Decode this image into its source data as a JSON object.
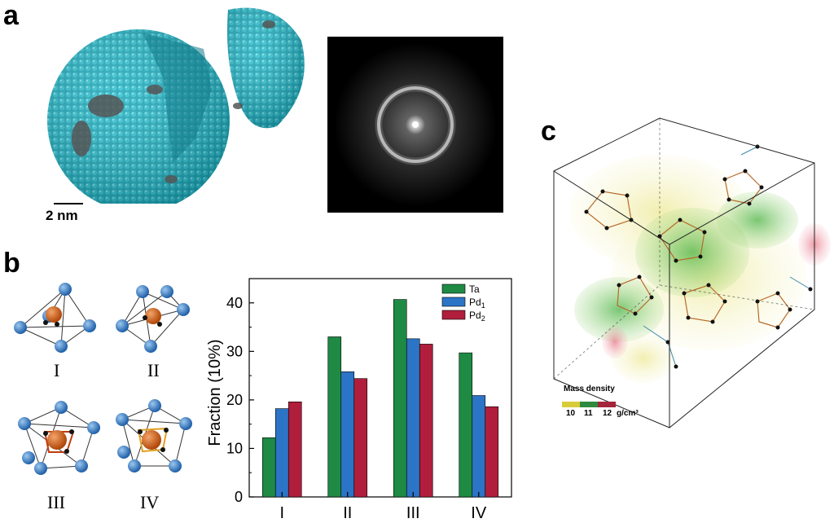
{
  "panels": {
    "a": "a",
    "b": "b",
    "c": "c"
  },
  "scale_bar": "2 nm",
  "structures": [
    "I",
    "II",
    "III",
    "IV"
  ],
  "mass_density": {
    "title": "Mass density",
    "ticks": [
      "10",
      "11",
      "12"
    ],
    "unit": "g/cm³",
    "colors": [
      "#d7cc3a",
      "#2e8b3e",
      "#a3243b"
    ]
  },
  "chart_data": {
    "type": "bar",
    "categories": [
      "I",
      "II",
      "III",
      "IV"
    ],
    "series": [
      {
        "name": "Ta",
        "sub": "",
        "color": "#1e8a44",
        "values": [
          12.2,
          33.0,
          40.7,
          29.7
        ]
      },
      {
        "name": "Pd",
        "sub": "1",
        "color": "#2c74c6",
        "values": [
          18.2,
          25.8,
          32.6,
          20.9
        ]
      },
      {
        "name": "Pd",
        "sub": "2",
        "color": "#b01e3c",
        "values": [
          19.6,
          24.4,
          31.5,
          18.6
        ]
      }
    ],
    "ylabel": "Fraction (10%)",
    "xlabel": "",
    "ylim": [
      0,
      45
    ],
    "yticks": [
      0,
      10,
      20,
      30,
      40
    ],
    "legend": "top-right"
  }
}
